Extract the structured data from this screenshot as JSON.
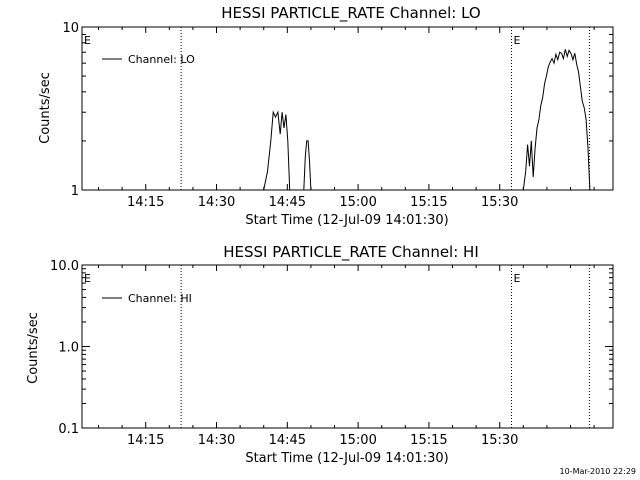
{
  "timestamp": "10-Mar-2010 22:29",
  "chart_data": [
    {
      "type": "line",
      "title": "HESSI PARTICLE_RATE Channel: LO",
      "xlabel": "Start Time (12-Jul-09 14:01:30)",
      "ylabel": "Counts/sec",
      "yscale": "log",
      "ylim": [
        1,
        10
      ],
      "xlim_min": [
        0,
        112.5
      ],
      "yticks": [
        1,
        10
      ],
      "ytick_labels": [
        "1",
        "10"
      ],
      "xticks_min": [
        13.5,
        28.5,
        43.5,
        58.5,
        73.5,
        88.5
      ],
      "xtick_labels": [
        "14:15",
        "14:30",
        "14:45",
        "15:00",
        "15:15",
        "15:30"
      ],
      "markers_min": [
        21,
        91,
        107.5
      ],
      "marker_labels": [
        "E",
        "E"
      ],
      "legend": "top-left",
      "series": [
        {
          "name": "Channel: LO",
          "x": [
            38.5,
            39.3,
            40.0,
            40.5,
            41.0,
            41.5,
            42.0,
            42.4,
            42.8,
            43.2,
            43.6,
            44.0,
            47.0,
            47.3,
            47.6,
            47.9,
            48.2,
            48.5,
            85,
            93.5,
            94.0,
            94.4,
            94.8,
            95.2,
            95.6,
            96.0,
            96.4,
            96.8,
            97.2,
            97.6,
            98.0,
            98.4,
            98.8,
            99.2,
            99.6,
            100.0,
            100.4,
            100.8,
            101.2,
            101.6,
            102.0,
            102.4,
            102.8,
            103.2,
            103.6,
            104.0,
            104.4,
            104.8,
            105.2,
            105.6,
            106.0,
            106.4,
            106.8,
            107.2,
            107.6
          ],
          "y": [
            1,
            1.3,
            2.0,
            3.0,
            2.8,
            3.0,
            2.2,
            3.0,
            2.4,
            2.9,
            2.0,
            1,
            1,
            1.6,
            2.0,
            2.0,
            1.5,
            1,
            null,
            1,
            1.3,
            1.9,
            1.4,
            2.0,
            1.2,
            1.8,
            2.4,
            2.7,
            3.3,
            3.7,
            4.5,
            5.0,
            5.7,
            6.1,
            6.4,
            6.0,
            6.8,
            6.3,
            7.0,
            6.9,
            6.4,
            7.3,
            6.6,
            7.2,
            6.9,
            6.3,
            6.9,
            5.9,
            5.3,
            4.3,
            3.5,
            3.2,
            2.7,
            1.8,
            1
          ]
        }
      ]
    },
    {
      "type": "line",
      "title": "HESSI PARTICLE_RATE Channel: HI",
      "xlabel": "Start Time (12-Jul-09 14:01:30)",
      "ylabel": "Counts/sec",
      "yscale": "log",
      "ylim": [
        0.1,
        10
      ],
      "xlim_min": [
        0,
        112.5
      ],
      "yticks": [
        0.1,
        1,
        10
      ],
      "ytick_labels": [
        "0.1",
        "1.0",
        "10.0"
      ],
      "xticks_min": [
        13.5,
        28.5,
        43.5,
        58.5,
        73.5,
        88.5
      ],
      "xtick_labels": [
        "14:15",
        "14:30",
        "14:45",
        "15:00",
        "15:15",
        "15:30"
      ],
      "markers_min": [
        21,
        91,
        107.5
      ],
      "marker_labels": [
        "E",
        "E"
      ],
      "legend": "top-left",
      "series": [
        {
          "name": "Channel: HI",
          "x": [],
          "y": []
        }
      ]
    }
  ]
}
